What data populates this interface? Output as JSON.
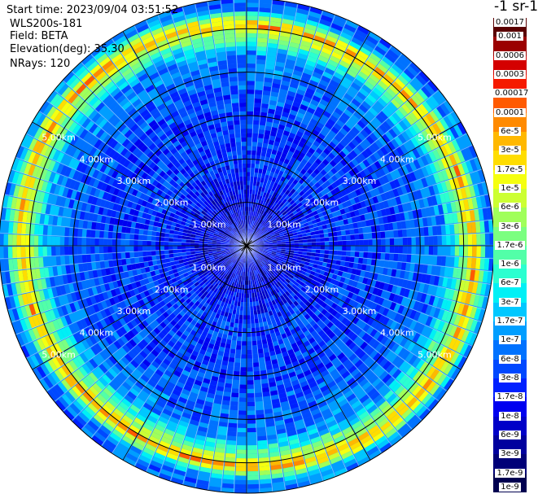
{
  "header": {
    "start_time": "Start time: 2023/09/04 03:51:52",
    "instrument": "WLS200s-181",
    "field": "Field: BETA",
    "elevation": "Elevation(deg): 35.30",
    "nrays": "NRays: 120"
  },
  "colorbar": {
    "unit": "-1 sr-1",
    "labels": [
      "0.0017",
      "0.001",
      "0.0006",
      "0.0003",
      "0.00017",
      "0.0001",
      "6e-5",
      "3e-5",
      "1.7e-5",
      "1e-5",
      "6e-6",
      "3e-6",
      "1.7e-6",
      "1e-6",
      "6e-7",
      "3e-7",
      "1.7e-7",
      "1e-7",
      "6e-8",
      "3e-8",
      "1.7e-8",
      "1e-8",
      "6e-9",
      "3e-9",
      "1.7e-9",
      "1e-9"
    ],
    "colors": [
      "#5a0000",
      "#9b0000",
      "#d40000",
      "#f51a00",
      "#ff5a00",
      "#ff8a00",
      "#ffb800",
      "#ffdd00",
      "#f5ff10",
      "#ccff33",
      "#a0ff5a",
      "#7bff80",
      "#52ffa8",
      "#2bffd0",
      "#00f0f5",
      "#00c8ff",
      "#009eff",
      "#0072ff",
      "#0048ff",
      "#0020ff",
      "#0000f0",
      "#0000c8",
      "#00009e",
      "#000078",
      "#000050"
    ]
  },
  "chart_data": {
    "type": "heatmap",
    "subtype": "polar-ppi",
    "field": "BETA",
    "nrays": 120,
    "elevation_deg": 35.3,
    "range_rings": [
      {
        "label": "1.00km",
        "km": 1.0
      },
      {
        "label": "2.00km",
        "km": 2.0
      },
      {
        "label": "3.00km",
        "km": 3.0
      },
      {
        "label": "4.00km",
        "km": 4.0
      },
      {
        "label": "5.00km",
        "km": 5.0
      }
    ],
    "max_range_km": 5.7,
    "radial_profile": [
      {
        "km": 0.0,
        "value": "1e-8"
      },
      {
        "km": 1.0,
        "value": "1e-8"
      },
      {
        "km": 2.0,
        "value": "3e-8"
      },
      {
        "km": 3.0,
        "value": "3e-8"
      },
      {
        "km": 4.0,
        "value": "6e-8"
      },
      {
        "km": 4.5,
        "value": "1e-7"
      },
      {
        "km": 5.05,
        "value": "1e-5"
      },
      {
        "km": 5.15,
        "value": "6e-5"
      },
      {
        "km": 5.25,
        "value": "1e-5"
      },
      {
        "km": 5.5,
        "value": "1e-7"
      },
      {
        "km": 5.7,
        "value": "6e-8"
      }
    ],
    "colorscale": "log",
    "colorscale_range": [
      "1e-9",
      "0.0017"
    ]
  }
}
